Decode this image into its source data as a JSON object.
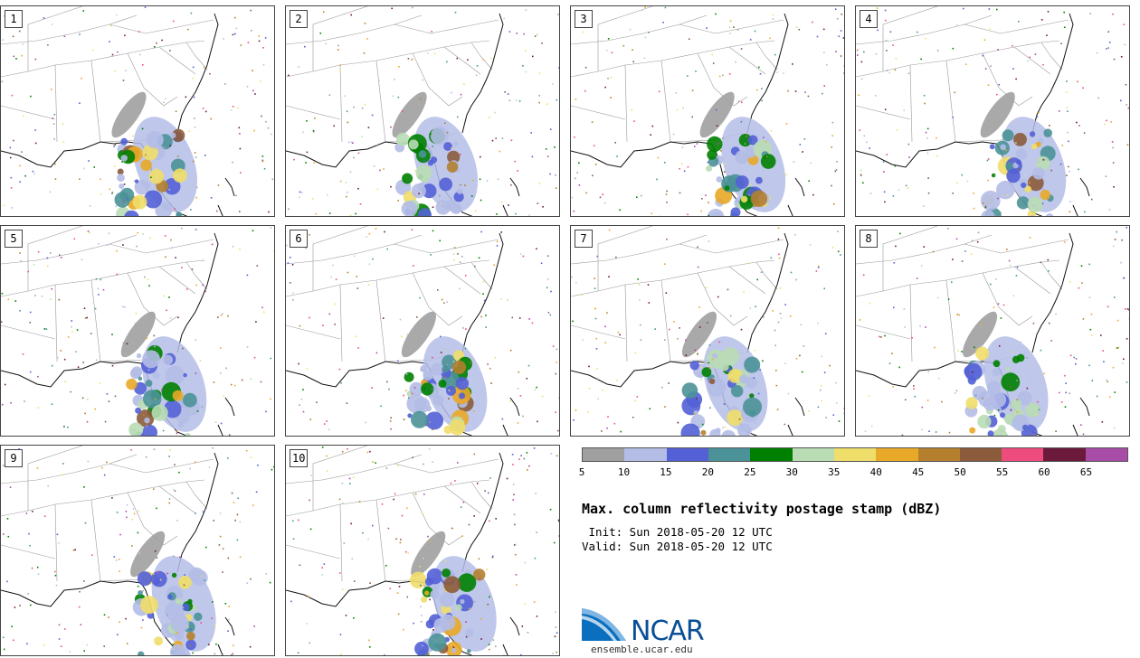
{
  "figure": {
    "title": "Max. column reflectivity postage stamp (dBZ)",
    "init_label": " Init: Sun 2018-05-20 12 UTC",
    "valid_label": "Valid: Sun 2018-05-20 12 UTC"
  },
  "colorbar": {
    "unit": "dBZ",
    "colors": [
      "#a0a0a0",
      "#b4bde6",
      "#5360d6",
      "#4b9298",
      "#008000",
      "#b9dcb5",
      "#efde69",
      "#e9a928",
      "#b4802e",
      "#8b5b3c",
      "#ee4c7f",
      "#6b1a3c",
      "#a84da7"
    ],
    "tick_labels": [
      "5",
      "10",
      "15",
      "20",
      "25",
      "30",
      "35",
      "40",
      "45",
      "50",
      "55",
      "60",
      "65"
    ]
  },
  "panels": [
    {
      "member": "1"
    },
    {
      "member": "2"
    },
    {
      "member": "3"
    },
    {
      "member": "4"
    },
    {
      "member": "5"
    },
    {
      "member": "6"
    },
    {
      "member": "7"
    },
    {
      "member": "8"
    },
    {
      "member": "9"
    },
    {
      "member": "10"
    }
  ],
  "logo": {
    "name": "NCAR",
    "url": "ensemble.ucar.edu"
  }
}
